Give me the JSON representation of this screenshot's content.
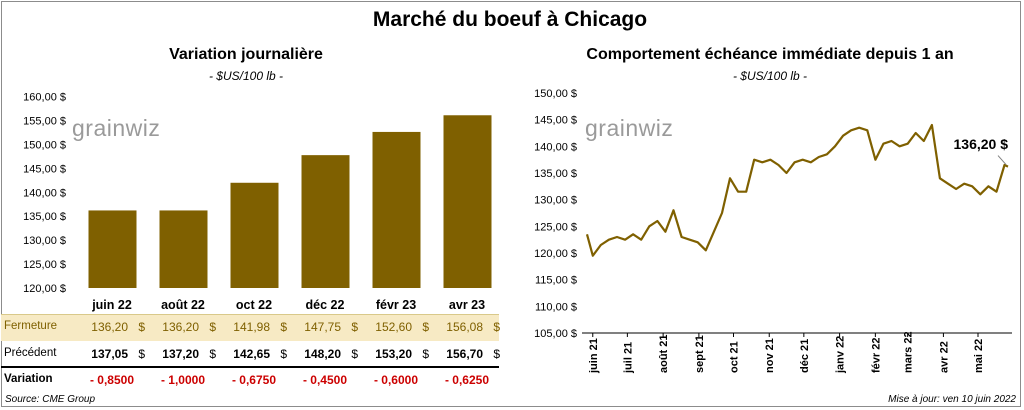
{
  "title": "Marché du boeuf à Chicago",
  "left": {
    "title": "Variation  journalière",
    "subtitle": "- $US/100 lb -",
    "logo": "grainwiz",
    "yticks": [
      "160,00 $",
      "155,00 $",
      "150,00 $",
      "145,00 $",
      "140,00 $",
      "135,00 $",
      "130,00 $",
      "125,00 $",
      "120,00 $"
    ],
    "table": {
      "row_close_label": "Fermeture",
      "row_prev_label": "Précédent",
      "row_var_label": "Variation",
      "currency": "$",
      "close": [
        "136,20",
        "136,20",
        "141,98",
        "147,75",
        "152,60",
        "156,08"
      ],
      "previous": [
        "137,05",
        "137,20",
        "142,65",
        "148,20",
        "153,20",
        "156,70"
      ],
      "variation": [
        "- 0,8500",
        "- 1,0000",
        "- 0,6750",
        "- 0,4500",
        "- 0,6000",
        "- 0,6250"
      ]
    }
  },
  "right": {
    "title": "Comportement  échéance immédiate depuis 1 an",
    "subtitle": "- $US/100 lb -",
    "logo": "grainwiz",
    "yticks": [
      "150,00 $",
      "145,00 $",
      "140,00 $",
      "135,00 $",
      "130,00 $",
      "125,00 $",
      "120,00 $",
      "115,00 $",
      "110,00 $",
      "105,00 $"
    ],
    "xticks": [
      "juin 21",
      "juil 21",
      "août 21",
      "sept 21",
      "oct 21",
      "nov 21",
      "déc 21",
      "janv 22",
      "févr 22",
      "mars 22",
      "avr 22",
      "mai 22"
    ],
    "last_label": "136,20 $"
  },
  "source": "Source: CME Group",
  "updated": "Mise à jour: ven 10 juin 2022",
  "colors": {
    "bar": "#7f6000",
    "line": "#7f6000",
    "close_band": "#f7eac4",
    "negative": "#cc0000"
  },
  "chart_data": [
    {
      "type": "bar",
      "title": "Variation  journalière",
      "subtitle": "- $US/100 lb -",
      "categories": [
        "juin 22",
        "août 22",
        "oct 22",
        "déc 22",
        "févr 23",
        "avr 23"
      ],
      "values": [
        136.2,
        136.2,
        141.98,
        147.75,
        152.6,
        156.08
      ],
      "ylim": [
        120,
        160
      ],
      "grid": false
    },
    {
      "type": "line",
      "title": "Comportement  échéance immédiate depuis 1 an",
      "subtitle": "- $US/100 lb -",
      "x_range": [
        "2021-06-10",
        "2022-06-10"
      ],
      "xticks": [
        "juin 21",
        "juil 21",
        "août 21",
        "sept 21",
        "oct 21",
        "nov 21",
        "déc 21",
        "janv 22",
        "févr 22",
        "mars 22",
        "avr 22",
        "mai 22"
      ],
      "x": [
        "2021-06-10",
        "2021-06-15",
        "2021-06-22",
        "2021-06-29",
        "2021-07-06",
        "2021-07-13",
        "2021-07-20",
        "2021-07-27",
        "2021-08-03",
        "2021-08-10",
        "2021-08-17",
        "2021-08-24",
        "2021-08-31",
        "2021-09-07",
        "2021-09-14",
        "2021-09-21",
        "2021-09-28",
        "2021-10-05",
        "2021-10-12",
        "2021-10-19",
        "2021-10-26",
        "2021-11-02",
        "2021-11-09",
        "2021-11-16",
        "2021-11-23",
        "2021-11-30",
        "2021-12-07",
        "2021-12-14",
        "2021-12-21",
        "2021-12-28",
        "2022-01-04",
        "2022-01-11",
        "2022-01-18",
        "2022-01-25",
        "2022-02-01",
        "2022-02-08",
        "2022-02-15",
        "2022-02-22",
        "2022-03-01",
        "2022-03-08",
        "2022-03-15",
        "2022-03-22",
        "2022-03-29",
        "2022-04-05",
        "2022-04-12",
        "2022-04-19",
        "2022-04-26",
        "2022-05-03",
        "2022-05-10",
        "2022-05-17",
        "2022-05-24",
        "2022-05-31",
        "2022-06-07",
        "2022-06-10"
      ],
      "y": [
        123.5,
        119.5,
        121.5,
        122.5,
        123.0,
        122.5,
        123.5,
        122.5,
        125.0,
        126.0,
        124.0,
        128.0,
        123.0,
        122.5,
        122.0,
        120.5,
        124.0,
        127.5,
        134.0,
        131.5,
        131.5,
        137.5,
        137.0,
        137.5,
        136.5,
        135.0,
        137.0,
        137.5,
        137.0,
        138.0,
        138.5,
        140.0,
        142.0,
        143.0,
        143.5,
        143.0,
        137.5,
        140.5,
        141.0,
        140.0,
        140.5,
        142.5,
        141.0,
        144.0,
        134.0,
        133.0,
        132.0,
        133.0,
        132.5,
        131.0,
        132.5,
        131.5,
        136.5,
        136.2
      ],
      "ylim": [
        105,
        150
      ],
      "grid": false,
      "annotations": [
        "136,20 $"
      ]
    }
  ]
}
